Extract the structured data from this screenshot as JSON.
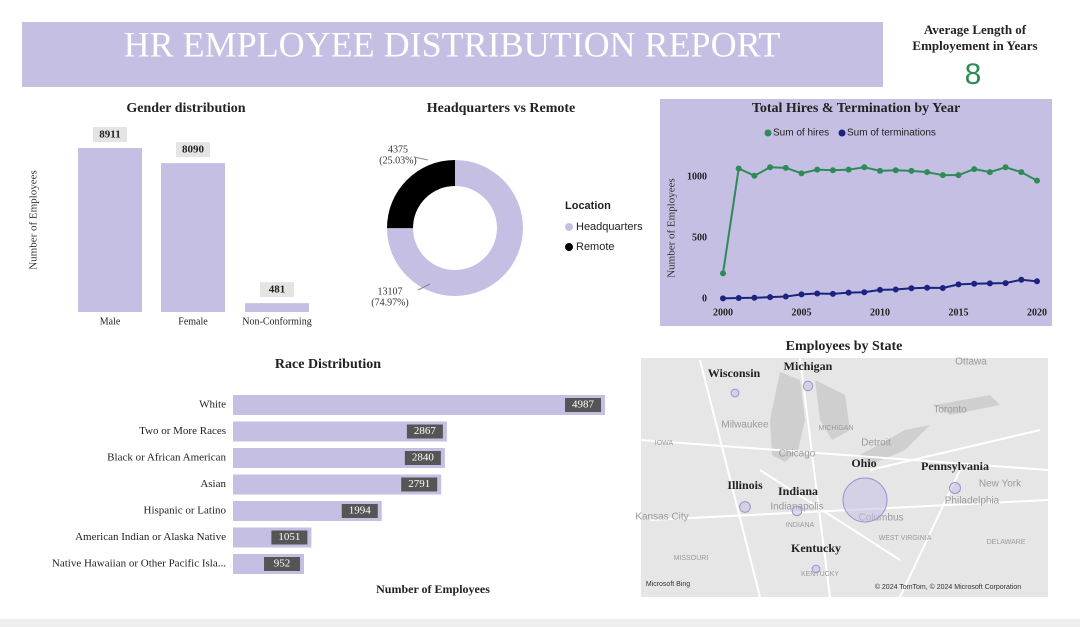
{
  "title": "HR EMPLOYEE DISTRIBUTION REPORT",
  "kpi": {
    "label": "Average Length of Employement in Years",
    "value": 8
  },
  "chart_data": [
    {
      "type": "bar",
      "title": "Gender distribution",
      "ylabel": "Number of Employees",
      "categories": [
        "Male",
        "Female",
        "Non-Conforming"
      ],
      "values": [
        8911,
        8090,
        481
      ],
      "color": "#c5bfe3",
      "ylim": [
        0,
        10000
      ]
    },
    {
      "type": "pie",
      "title": "Headquarters vs Remote",
      "legend_title": "Location",
      "categories": [
        "Headquarters",
        "Remote"
      ],
      "values": [
        13107,
        4375
      ],
      "percent_labels": [
        "(74.97%)",
        "(25.03%)"
      ],
      "colors": [
        "#c5bfe3",
        "#000000"
      ],
      "donut": true
    },
    {
      "type": "line",
      "title": "Total Hires & Termination by Year",
      "ylabel": "Number of Employees",
      "x": [
        2000,
        2001,
        2002,
        2003,
        2004,
        2005,
        2006,
        2007,
        2008,
        2009,
        2010,
        2011,
        2012,
        2013,
        2014,
        2015,
        2016,
        2017,
        2018,
        2019,
        2020
      ],
      "series": [
        {
          "name": "Sum of hires",
          "color": "#2e8b57",
          "values": [
            210,
            1070,
            1010,
            1080,
            1075,
            1030,
            1060,
            1055,
            1060,
            1080,
            1050,
            1055,
            1050,
            1040,
            1015,
            1015,
            1065,
            1040,
            1080,
            1040,
            970
          ]
        },
        {
          "name": "Sum of terminations",
          "color": "#1a237e",
          "values": [
            5,
            8,
            10,
            15,
            20,
            38,
            45,
            42,
            52,
            55,
            75,
            78,
            88,
            92,
            90,
            120,
            125,
            128,
            130,
            158,
            145
          ]
        }
      ],
      "xlim": [
        2000,
        2020
      ],
      "xticks": [
        2000,
        2005,
        2010,
        2015,
        2020
      ],
      "ylim": [
        0,
        1150
      ],
      "yticks": [
        0,
        500,
        1000
      ],
      "background": "#c5bfe3"
    },
    {
      "type": "hbar",
      "title": "Race Distribution",
      "xlabel": "Number of Employees",
      "categories": [
        "White",
        "Two or More Races",
        "Black or African American",
        "Asian",
        "Hispanic or Latino",
        "American Indian or Alaska Native",
        "Native Hawaiian or Other Pacific Isla..."
      ],
      "values": [
        4987,
        2867,
        2840,
        2791,
        1994,
        1051,
        952
      ],
      "color": "#c5bfe3",
      "xlim": [
        0,
        5000
      ]
    },
    {
      "type": "map",
      "title": "Employees by State",
      "categories": [
        "Wisconsin",
        "Michigan",
        "Illinois",
        "Indiana",
        "Ohio",
        "Pennsylvania",
        "Kentucky"
      ],
      "values": [
        460,
        673,
        868,
        700,
        14788,
        930,
        450
      ],
      "color": "#c5bfe3",
      "map_labels": [
        "Milwaukee",
        "Chicago",
        "Detroit",
        "Toronto",
        "Ottawa",
        "New York",
        "Philadelphia",
        "Columbus",
        "Indianapolis",
        "Kansas City",
        "IOWA",
        "MICHIGAN",
        "MISSOURI",
        "INDIANA",
        "KENTUCKY",
        "WEST VIRGINIA",
        "DELAWARE",
        "Microsoft Bing",
        "© 2024 TomTom, © 2024 Microsoft Corporation"
      ]
    }
  ]
}
